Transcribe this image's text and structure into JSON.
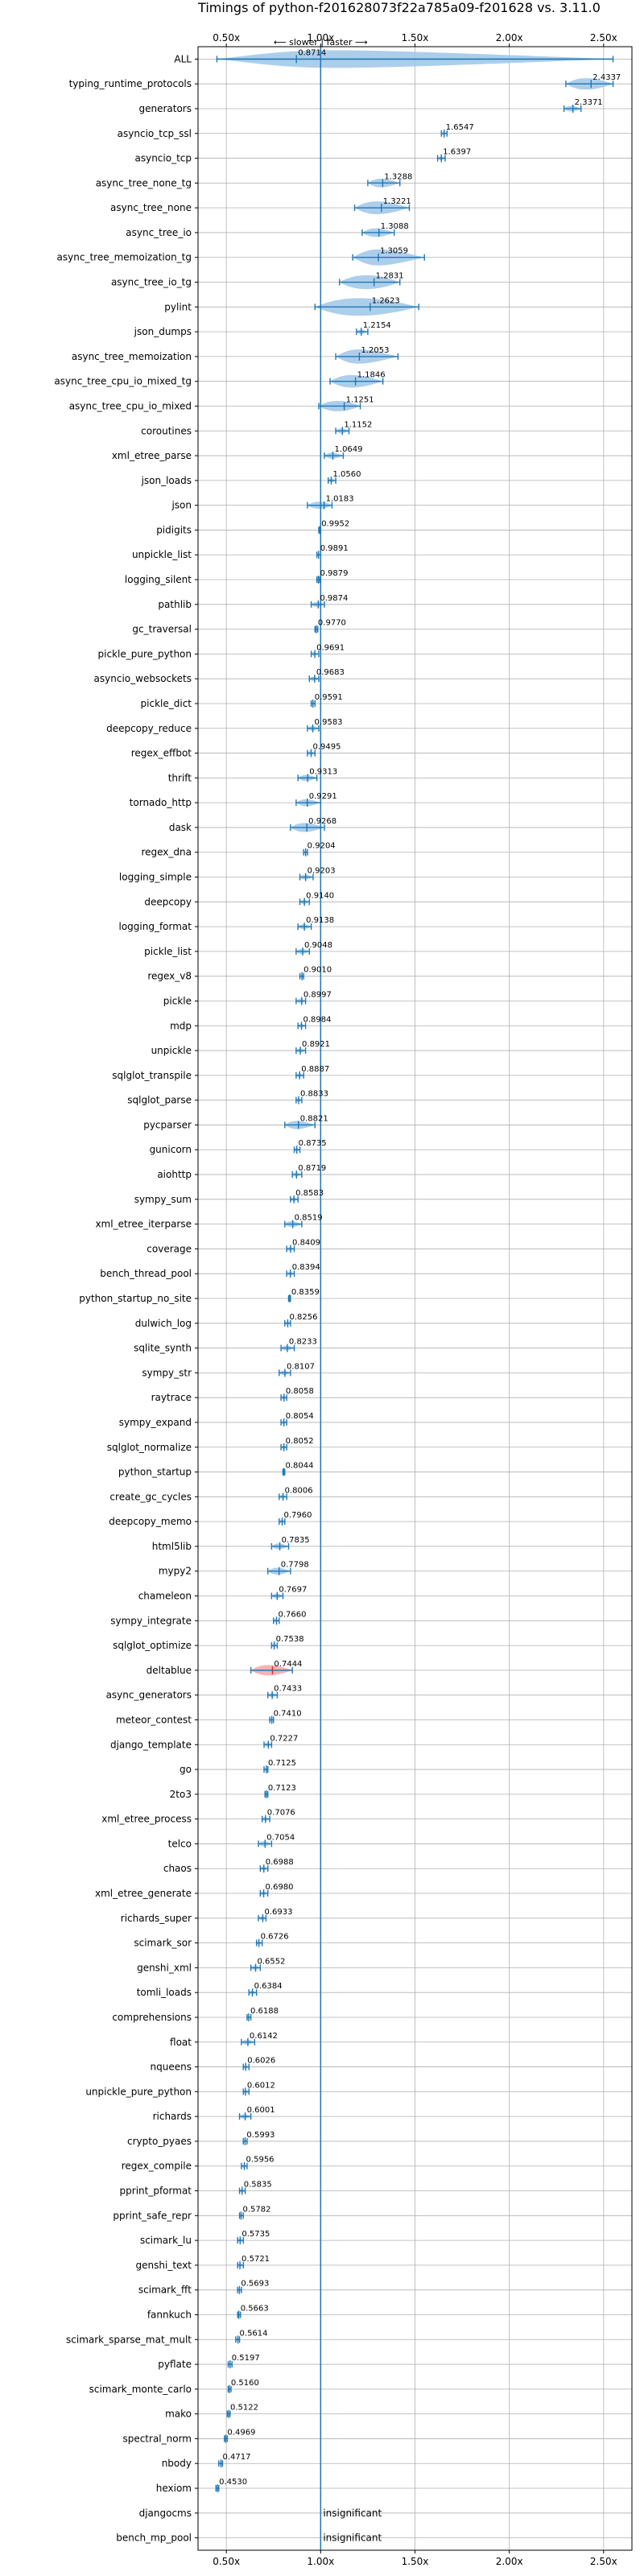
{
  "chart_data": {
    "type": "violin",
    "title": "Timings of python-f201628073f22a785a09-f201628 vs. 3.11.0",
    "annotation": "⟵ slower  |  faster ⟶",
    "x_ticks": [
      "0.50x",
      "1.00x",
      "1.50x",
      "2.00x",
      "2.50x"
    ],
    "x_tick_values": [
      0.5,
      1.0,
      1.5,
      2.0,
      2.5
    ],
    "xlim": [
      0.35,
      2.65
    ],
    "grid": true,
    "colors": {
      "faster": "#1f77b4",
      "slower": "#d62728",
      "violin_fast": "#9fc5e8",
      "violin_slow": "#f4a6a8",
      "ref_line": "#1f77b4"
    },
    "benchmarks": [
      {
        "name": "ALL",
        "value": 0.8714,
        "label": "0.8714",
        "lo": 0.45,
        "hi": 2.55
      },
      {
        "name": "typing_runtime_protocols",
        "value": 2.4337,
        "label": "2.4337",
        "lo": 2.3,
        "hi": 2.55
      },
      {
        "name": "generators",
        "value": 2.3371,
        "label": "2.3371",
        "lo": 2.29,
        "hi": 2.38
      },
      {
        "name": "asyncio_tcp_ssl",
        "value": 1.6547,
        "label": "1.6547",
        "lo": 1.64,
        "hi": 1.67
      },
      {
        "name": "asyncio_tcp",
        "value": 1.6397,
        "label": "1.6397",
        "lo": 1.62,
        "hi": 1.66
      },
      {
        "name": "async_tree_none_tg",
        "value": 1.3288,
        "label": "1.3288",
        "lo": 1.25,
        "hi": 1.42
      },
      {
        "name": "async_tree_none",
        "value": 1.3221,
        "label": "1.3221",
        "lo": 1.18,
        "hi": 1.47
      },
      {
        "name": "async_tree_io",
        "value": 1.3088,
        "label": "1.3088",
        "lo": 1.22,
        "hi": 1.39
      },
      {
        "name": "async_tree_memoization_tg",
        "value": 1.3059,
        "label": "1.3059",
        "lo": 1.17,
        "hi": 1.55
      },
      {
        "name": "async_tree_io_tg",
        "value": 1.2831,
        "label": "1.2831",
        "lo": 1.1,
        "hi": 1.42
      },
      {
        "name": "pylint",
        "value": 1.2623,
        "label": "1.2623",
        "lo": 0.97,
        "hi": 1.52
      },
      {
        "name": "json_dumps",
        "value": 1.2154,
        "label": "1.2154",
        "lo": 1.19,
        "hi": 1.25
      },
      {
        "name": "async_tree_memoization",
        "value": 1.2053,
        "label": "1.2053",
        "lo": 1.08,
        "hi": 1.41
      },
      {
        "name": "async_tree_cpu_io_mixed_tg",
        "value": 1.1846,
        "label": "1.1846",
        "lo": 1.05,
        "hi": 1.33
      },
      {
        "name": "async_tree_cpu_io_mixed",
        "value": 1.1251,
        "label": "1.1251",
        "lo": 0.99,
        "hi": 1.21
      },
      {
        "name": "coroutines",
        "value": 1.1152,
        "label": "1.1152",
        "lo": 1.08,
        "hi": 1.15
      },
      {
        "name": "xml_etree_parse",
        "value": 1.0649,
        "label": "1.0649",
        "lo": 1.02,
        "hi": 1.12
      },
      {
        "name": "json_loads",
        "value": 1.056,
        "label": "1.0560",
        "lo": 1.04,
        "hi": 1.08
      },
      {
        "name": "json",
        "value": 1.0183,
        "label": "1.0183",
        "lo": 0.93,
        "hi": 1.06
      },
      {
        "name": "pidigits",
        "value": 0.9952,
        "label": "0.9952",
        "lo": 0.99,
        "hi": 1.0
      },
      {
        "name": "unpickle_list",
        "value": 0.9891,
        "label": "0.9891",
        "lo": 0.98,
        "hi": 1.0
      },
      {
        "name": "logging_silent",
        "value": 0.9879,
        "label": "0.9879",
        "lo": 0.98,
        "hi": 0.995
      },
      {
        "name": "pathlib",
        "value": 0.9874,
        "label": "0.9874",
        "lo": 0.95,
        "hi": 1.02
      },
      {
        "name": "gc_traversal",
        "value": 0.977,
        "label": "0.9770",
        "lo": 0.97,
        "hi": 0.985
      },
      {
        "name": "pickle_pure_python",
        "value": 0.9691,
        "label": "0.9691",
        "lo": 0.95,
        "hi": 0.99
      },
      {
        "name": "asyncio_websockets",
        "value": 0.9683,
        "label": "0.9683",
        "lo": 0.94,
        "hi": 0.99
      },
      {
        "name": "pickle_dict",
        "value": 0.9591,
        "label": "0.9591",
        "lo": 0.95,
        "hi": 0.97
      },
      {
        "name": "deepcopy_reduce",
        "value": 0.9583,
        "label": "0.9583",
        "lo": 0.93,
        "hi": 0.99
      },
      {
        "name": "regex_effbot",
        "value": 0.9495,
        "label": "0.9495",
        "lo": 0.93,
        "hi": 0.97
      },
      {
        "name": "thrift",
        "value": 0.9313,
        "label": "0.9313",
        "lo": 0.88,
        "hi": 0.98
      },
      {
        "name": "tornado_http",
        "value": 0.9291,
        "label": "0.9291",
        "lo": 0.87,
        "hi": 1.0
      },
      {
        "name": "dask",
        "value": 0.9268,
        "label": "0.9268",
        "lo": 0.84,
        "hi": 1.02
      },
      {
        "name": "regex_dna",
        "value": 0.9204,
        "label": "0.9204",
        "lo": 0.91,
        "hi": 0.93
      },
      {
        "name": "logging_simple",
        "value": 0.9203,
        "label": "0.9203",
        "lo": 0.89,
        "hi": 0.96
      },
      {
        "name": "deepcopy",
        "value": 0.914,
        "label": "0.9140",
        "lo": 0.89,
        "hi": 0.94
      },
      {
        "name": "logging_format",
        "value": 0.9138,
        "label": "0.9138",
        "lo": 0.88,
        "hi": 0.95
      },
      {
        "name": "pickle_list",
        "value": 0.9048,
        "label": "0.9048",
        "lo": 0.87,
        "hi": 0.94
      },
      {
        "name": "regex_v8",
        "value": 0.901,
        "label": "0.9010",
        "lo": 0.89,
        "hi": 0.91
      },
      {
        "name": "pickle",
        "value": 0.8997,
        "label": "0.8997",
        "lo": 0.87,
        "hi": 0.92
      },
      {
        "name": "mdp",
        "value": 0.8984,
        "label": "0.8984",
        "lo": 0.88,
        "hi": 0.92
      },
      {
        "name": "unpickle",
        "value": 0.8921,
        "label": "0.8921",
        "lo": 0.87,
        "hi": 0.92
      },
      {
        "name": "sqlglot_transpile",
        "value": 0.8887,
        "label": "0.8887",
        "lo": 0.87,
        "hi": 0.91
      },
      {
        "name": "sqlglot_parse",
        "value": 0.8833,
        "label": "0.8833",
        "lo": 0.87,
        "hi": 0.9
      },
      {
        "name": "pycparser",
        "value": 0.8821,
        "label": "0.8821",
        "lo": 0.81,
        "hi": 0.97
      },
      {
        "name": "gunicorn",
        "value": 0.8735,
        "label": "0.8735",
        "lo": 0.86,
        "hi": 0.89
      },
      {
        "name": "aiohttp",
        "value": 0.8719,
        "label": "0.8719",
        "lo": 0.85,
        "hi": 0.9
      },
      {
        "name": "sympy_sum",
        "value": 0.8583,
        "label": "0.8583",
        "lo": 0.84,
        "hi": 0.88
      },
      {
        "name": "xml_etree_iterparse",
        "value": 0.8519,
        "label": "0.8519",
        "lo": 0.81,
        "hi": 0.9
      },
      {
        "name": "coverage",
        "value": 0.8409,
        "label": "0.8409",
        "lo": 0.82,
        "hi": 0.86
      },
      {
        "name": "bench_thread_pool",
        "value": 0.8394,
        "label": "0.8394",
        "lo": 0.82,
        "hi": 0.86
      },
      {
        "name": "python_startup_no_site",
        "value": 0.8359,
        "label": "0.8359",
        "lo": 0.83,
        "hi": 0.84
      },
      {
        "name": "dulwich_log",
        "value": 0.8256,
        "label": "0.8256",
        "lo": 0.81,
        "hi": 0.84
      },
      {
        "name": "sqlite_synth",
        "value": 0.8233,
        "label": "0.8233",
        "lo": 0.79,
        "hi": 0.86
      },
      {
        "name": "sympy_str",
        "value": 0.8107,
        "label": "0.8107",
        "lo": 0.78,
        "hi": 0.84
      },
      {
        "name": "raytrace",
        "value": 0.8058,
        "label": "0.8058",
        "lo": 0.79,
        "hi": 0.82
      },
      {
        "name": "sympy_expand",
        "value": 0.8054,
        "label": "0.8054",
        "lo": 0.79,
        "hi": 0.82
      },
      {
        "name": "sqlglot_normalize",
        "value": 0.8052,
        "label": "0.8052",
        "lo": 0.79,
        "hi": 0.82
      },
      {
        "name": "python_startup",
        "value": 0.8044,
        "label": "0.8044",
        "lo": 0.8,
        "hi": 0.81
      },
      {
        "name": "create_gc_cycles",
        "value": 0.8006,
        "label": "0.8006",
        "lo": 0.78,
        "hi": 0.82
      },
      {
        "name": "deepcopy_memo",
        "value": 0.796,
        "label": "0.7960",
        "lo": 0.78,
        "hi": 0.81
      },
      {
        "name": "html5lib",
        "value": 0.7835,
        "label": "0.7835",
        "lo": 0.74,
        "hi": 0.83
      },
      {
        "name": "mypy2",
        "value": 0.7798,
        "label": "0.7798",
        "lo": 0.72,
        "hi": 0.84
      },
      {
        "name": "chameleon",
        "value": 0.7697,
        "label": "0.7697",
        "lo": 0.74,
        "hi": 0.8
      },
      {
        "name": "sympy_integrate",
        "value": 0.766,
        "label": "0.7660",
        "lo": 0.75,
        "hi": 0.78
      },
      {
        "name": "sqlglot_optimize",
        "value": 0.7538,
        "label": "0.7538",
        "lo": 0.74,
        "hi": 0.77
      },
      {
        "name": "deltablue",
        "value": 0.7444,
        "label": "0.7444",
        "lo": 0.63,
        "hi": 0.85
      },
      {
        "name": "async_generators",
        "value": 0.7433,
        "label": "0.7433",
        "lo": 0.72,
        "hi": 0.77
      },
      {
        "name": "meteor_contest",
        "value": 0.741,
        "label": "0.7410",
        "lo": 0.73,
        "hi": 0.75
      },
      {
        "name": "django_template",
        "value": 0.7227,
        "label": "0.7227",
        "lo": 0.7,
        "hi": 0.74
      },
      {
        "name": "go",
        "value": 0.7125,
        "label": "0.7125",
        "lo": 0.7,
        "hi": 0.72
      },
      {
        "name": "2to3",
        "value": 0.7123,
        "label": "0.7123",
        "lo": 0.705,
        "hi": 0.72
      },
      {
        "name": "xml_etree_process",
        "value": 0.7076,
        "label": "0.7076",
        "lo": 0.69,
        "hi": 0.73
      },
      {
        "name": "telco",
        "value": 0.7054,
        "label": "0.7054",
        "lo": 0.67,
        "hi": 0.74
      },
      {
        "name": "chaos",
        "value": 0.6988,
        "label": "0.6988",
        "lo": 0.68,
        "hi": 0.72
      },
      {
        "name": "xml_etree_generate",
        "value": 0.698,
        "label": "0.6980",
        "lo": 0.68,
        "hi": 0.72
      },
      {
        "name": "richards_super",
        "value": 0.6933,
        "label": "0.6933",
        "lo": 0.67,
        "hi": 0.71
      },
      {
        "name": "scimark_sor",
        "value": 0.6726,
        "label": "0.6726",
        "lo": 0.66,
        "hi": 0.69
      },
      {
        "name": "genshi_xml",
        "value": 0.6552,
        "label": "0.6552",
        "lo": 0.63,
        "hi": 0.68
      },
      {
        "name": "tomli_loads",
        "value": 0.6384,
        "label": "0.6384",
        "lo": 0.62,
        "hi": 0.66
      },
      {
        "name": "comprehensions",
        "value": 0.6188,
        "label": "0.6188",
        "lo": 0.61,
        "hi": 0.63
      },
      {
        "name": "float",
        "value": 0.6142,
        "label": "0.6142",
        "lo": 0.58,
        "hi": 0.65
      },
      {
        "name": "nqueens",
        "value": 0.6026,
        "label": "0.6026",
        "lo": 0.59,
        "hi": 0.62
      },
      {
        "name": "unpickle_pure_python",
        "value": 0.6012,
        "label": "0.6012",
        "lo": 0.59,
        "hi": 0.62
      },
      {
        "name": "richards",
        "value": 0.6001,
        "label": "0.6001",
        "lo": 0.57,
        "hi": 0.63
      },
      {
        "name": "crypto_pyaes",
        "value": 0.5993,
        "label": "0.5993",
        "lo": 0.59,
        "hi": 0.61
      },
      {
        "name": "regex_compile",
        "value": 0.5956,
        "label": "0.5956",
        "lo": 0.58,
        "hi": 0.61
      },
      {
        "name": "pprint_pformat",
        "value": 0.5835,
        "label": "0.5835",
        "lo": 0.57,
        "hi": 0.6
      },
      {
        "name": "pprint_safe_repr",
        "value": 0.5782,
        "label": "0.5782",
        "lo": 0.57,
        "hi": 0.59
      },
      {
        "name": "scimark_lu",
        "value": 0.5735,
        "label": "0.5735",
        "lo": 0.56,
        "hi": 0.59
      },
      {
        "name": "genshi_text",
        "value": 0.5721,
        "label": "0.5721",
        "lo": 0.56,
        "hi": 0.59
      },
      {
        "name": "scimark_fft",
        "value": 0.5693,
        "label": "0.5693",
        "lo": 0.56,
        "hi": 0.58
      },
      {
        "name": "fannkuch",
        "value": 0.5663,
        "label": "0.5663",
        "lo": 0.56,
        "hi": 0.575
      },
      {
        "name": "scimark_sparse_mat_mult",
        "value": 0.5614,
        "label": "0.5614",
        "lo": 0.55,
        "hi": 0.57
      },
      {
        "name": "pyflate",
        "value": 0.5197,
        "label": "0.5197",
        "lo": 0.51,
        "hi": 0.53
      },
      {
        "name": "scimark_monte_carlo",
        "value": 0.516,
        "label": "0.5160",
        "lo": 0.51,
        "hi": 0.525
      },
      {
        "name": "mako",
        "value": 0.5122,
        "label": "0.5122",
        "lo": 0.505,
        "hi": 0.52
      },
      {
        "name": "spectral_norm",
        "value": 0.4969,
        "label": "0.4969",
        "lo": 0.49,
        "hi": 0.505
      },
      {
        "name": "nbody",
        "value": 0.4717,
        "label": "0.4717",
        "lo": 0.46,
        "hi": 0.48
      },
      {
        "name": "hexiom",
        "value": 0.453,
        "label": "0.4530",
        "lo": 0.445,
        "hi": 0.46
      },
      {
        "name": "djangocms",
        "value": null,
        "label": "insignificant"
      },
      {
        "name": "bench_mp_pool",
        "value": null,
        "label": "insignificant"
      }
    ]
  }
}
